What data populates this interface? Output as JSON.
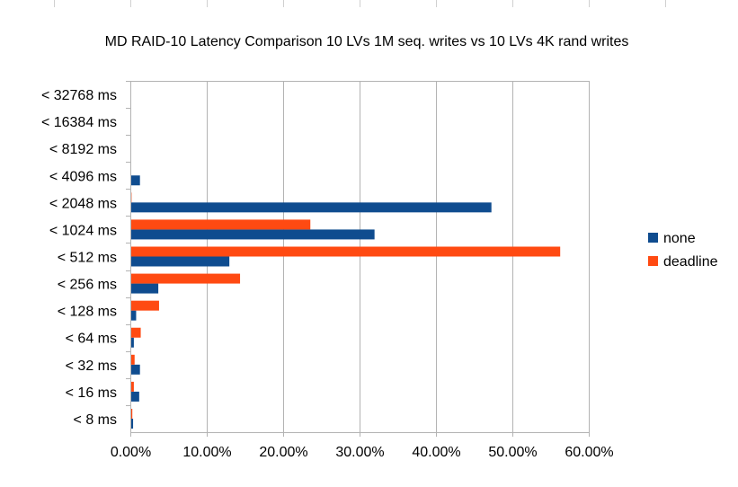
{
  "chart_data": {
    "type": "bar",
    "orientation": "horizontal",
    "title": "MD RAID-10 Latency Comparison 10 LVs 1M seq. writes vs 10 LVs 4K rand writes",
    "xlabel": "",
    "ylabel": "",
    "xlim": [
      0,
      60
    ],
    "x_ticks": [
      "0.00%",
      "10.00%",
      "20.00%",
      "30.00%",
      "40.00%",
      "50.00%",
      "60.00%"
    ],
    "grid": "vertical",
    "legend": "right",
    "categories": [
      "< 32768 ms",
      "< 16384 ms",
      "< 8192 ms",
      "< 4096 ms",
      "< 2048 ms",
      "< 1024 ms",
      "< 512 ms",
      "< 256 ms",
      "< 128 ms",
      "< 64 ms",
      "< 32 ms",
      "< 16 ms",
      "< 8 ms"
    ],
    "series": [
      {
        "name": "none",
        "color": "#0f4c8f",
        "values": [
          0,
          0.05,
          0.05,
          1.2,
          47.2,
          31.9,
          12.9,
          3.6,
          0.7,
          0.4,
          1.2,
          1.1,
          0.3
        ]
      },
      {
        "name": "deadline",
        "color": "#ff4a12",
        "values": [
          0,
          0,
          0,
          0,
          0.1,
          23.5,
          56.2,
          14.3,
          3.7,
          1.3,
          0.5,
          0.4,
          0.2
        ]
      }
    ]
  }
}
